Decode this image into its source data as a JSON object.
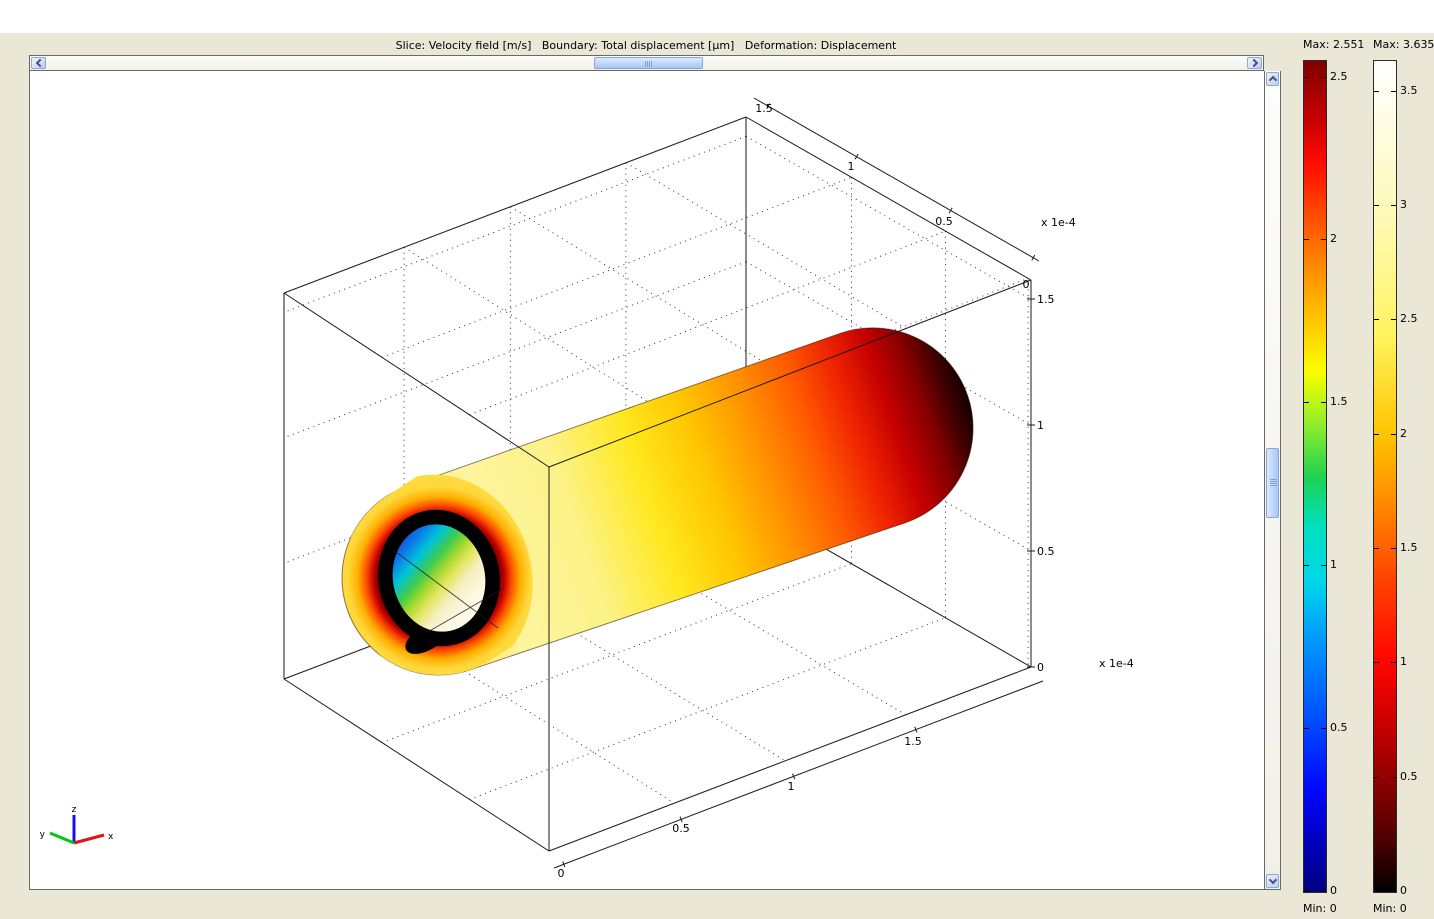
{
  "window": {
    "title": "Slice: Velocity field [m/s]   Boundary: Total displacement [µm]   Deformation: Displacement"
  },
  "plot": {
    "x_axis": {
      "tick_labels": [
        "0",
        "0.5",
        "1",
        "1.5"
      ],
      "scale_label": "x 1e-4"
    },
    "y_axis": {
      "tick_labels": [
        "1.5",
        "1",
        "0.5",
        "0"
      ],
      "scale_label": "x 1e-4"
    },
    "z_axis": {
      "tick_labels": [
        "1.5",
        "1",
        "0.5",
        "0"
      ]
    },
    "triad": {
      "x_label": "x",
      "y_label": "y",
      "z_label": "z"
    }
  },
  "legends": [
    {
      "id": "slice-velocity",
      "title": "Max: 2.551",
      "min_label": "Min: 0",
      "max_value": 2.551,
      "tick_values": [
        2.5,
        2,
        1.5,
        1,
        0.5,
        0
      ],
      "colormap": "jet"
    },
    {
      "id": "boundary-displacement",
      "title": "Max: 3.635",
      "min_label": "Min: 0",
      "max_value": 3.635,
      "tick_values": [
        3.5,
        3,
        2.5,
        2,
        1.5,
        1,
        0.5,
        0
      ],
      "colormap": "hot"
    }
  ]
}
